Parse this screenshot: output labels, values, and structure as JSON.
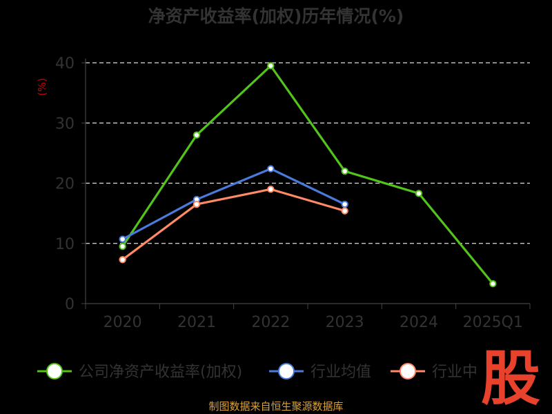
{
  "chart_data": {
    "type": "line",
    "title": "净资产收益率(加权)历年情况(%)",
    "ylabel": "(%)",
    "categories": [
      "2020",
      "2021",
      "2022",
      "2023",
      "2024",
      "2025Q1"
    ],
    "ylim": [
      0,
      40
    ],
    "yticks": [
      0,
      10,
      20,
      30,
      40
    ],
    "grid": true,
    "legend_position": "bottom",
    "series": [
      {
        "name": "公司净资产收益率(加权)",
        "color": "#52C41A",
        "values": [
          9.5,
          28.0,
          39.5,
          22.0,
          18.3,
          3.3
        ]
      },
      {
        "name": "行业均值",
        "color": "#4A7BDC",
        "values": [
          10.7,
          17.3,
          22.4,
          16.5,
          null,
          null
        ]
      },
      {
        "name": "行业中",
        "color": "#FF8A65",
        "values": [
          7.3,
          16.5,
          19.0,
          15.4,
          null,
          null
        ]
      }
    ]
  },
  "footer": {
    "source": "制图数据来自恒生聚源数据库"
  },
  "watermark": {
    "text": "股",
    "color": "#E8412C"
  }
}
